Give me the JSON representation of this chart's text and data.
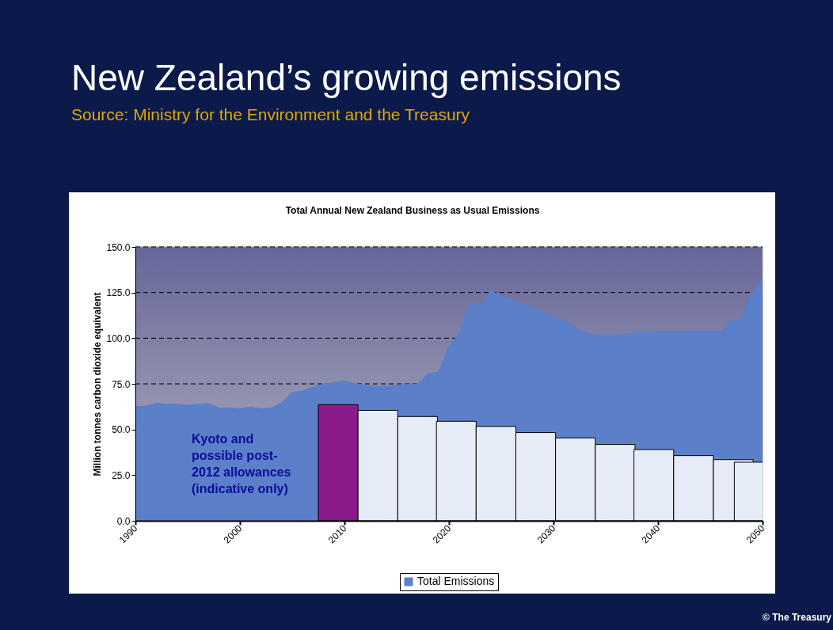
{
  "chart_data": {
    "type": "area",
    "title": "New Zealand’s growing emissions",
    "subtitle": "Source: Ministry for the Environment and the Treasury",
    "ylabel": "Million tonnes carbon dioxide equivalent",
    "annotations": [
      "Total Annual New Zealand Business as Usual Emissions",
      "Kyoto and\npossible post-\n2012 allowances\n(indicative only)",
      "© The Treasury"
    ],
    "x": [
      1990,
      1991,
      1992,
      1993,
      1994,
      1995,
      1996,
      1997,
      1998,
      1999,
      2000,
      2001,
      2002,
      2003,
      2004,
      2005,
      2006,
      2007,
      2008,
      2009,
      2010,
      2011,
      2012,
      2013,
      2014,
      2015,
      2016,
      2017,
      2018,
      2019,
      2020,
      2021,
      2022,
      2023,
      2024,
      2025,
      2026,
      2027,
      2028,
      2029,
      2030,
      2031,
      2032,
      2033,
      2034,
      2035,
      2036,
      2037,
      2038,
      2039,
      2040,
      2041,
      2042,
      2043,
      2044,
      2045,
      2046,
      2047,
      2048,
      2049,
      2050
    ],
    "series": [
      {
        "name": "Total Emissions",
        "color": "#5b7fc9",
        "values": [
          62.7,
          62.7,
          64.4,
          63.9,
          63.9,
          63.3,
          63.9,
          64.3,
          61.8,
          61.8,
          61.4,
          62.3,
          61.4,
          61.8,
          64.7,
          70.4,
          71.0,
          73.3,
          74.9,
          75.7,
          76.6,
          75.1,
          74.3,
          73.7,
          73.7,
          74.4,
          74.7,
          74.9,
          80.5,
          81.4,
          95.9,
          102.7,
          119.8,
          117.3,
          126.0,
          123.1,
          120.9,
          118.8,
          116.7,
          115.0,
          111.5,
          110.4,
          106.1,
          103.2,
          101.9,
          101.3,
          101.9,
          102.3,
          103.2,
          103.2,
          103.7,
          103.7,
          103.7,
          103.7,
          103.7,
          103.7,
          103.7,
          109.8,
          111.0,
          124.8,
          132.1
        ]
      },
      {
        "type": "bar",
        "x": [
          2009.4,
          2013.2,
          2017.0,
          2020.7,
          2024.5,
          2028.3,
          2032.1,
          2035.9,
          2039.6,
          2043.4,
          2047.2,
          2049.2
        ],
        "values": [
          63.6,
          60.5,
          57.1,
          54.5,
          51.7,
          48.3,
          45.4,
          41.8,
          39.0,
          35.7,
          33.5,
          32.1
        ],
        "colors": [
          "#8b1a8b",
          "#e6ecf7",
          "#e6ecf7",
          "#e6ecf7",
          "#e6ecf7",
          "#e6ecf7",
          "#e6ecf7",
          "#e6ecf7",
          "#e6ecf7",
          "#e6ecf7",
          "#e6ecf7",
          "#e6ecf7"
        ]
      }
    ],
    "xlim": [
      1990,
      2050
    ],
    "xticks": [
      1990,
      2000,
      2010,
      2020,
      2030,
      2040,
      2050
    ],
    "ylim": [
      0,
      150
    ],
    "yticks": [
      {
        "value": 0,
        "label": "0.0"
      },
      {
        "value": 25,
        "label": "25.0"
      },
      {
        "value": 50,
        "label": "50.0"
      },
      {
        "value": 75,
        "label": "75.0"
      },
      {
        "value": 100,
        "label": "100.0"
      },
      {
        "value": 125,
        "label": "125.0"
      },
      {
        "value": 150,
        "label": "150.0"
      }
    ],
    "grid": "y",
    "legend": "bottom"
  }
}
